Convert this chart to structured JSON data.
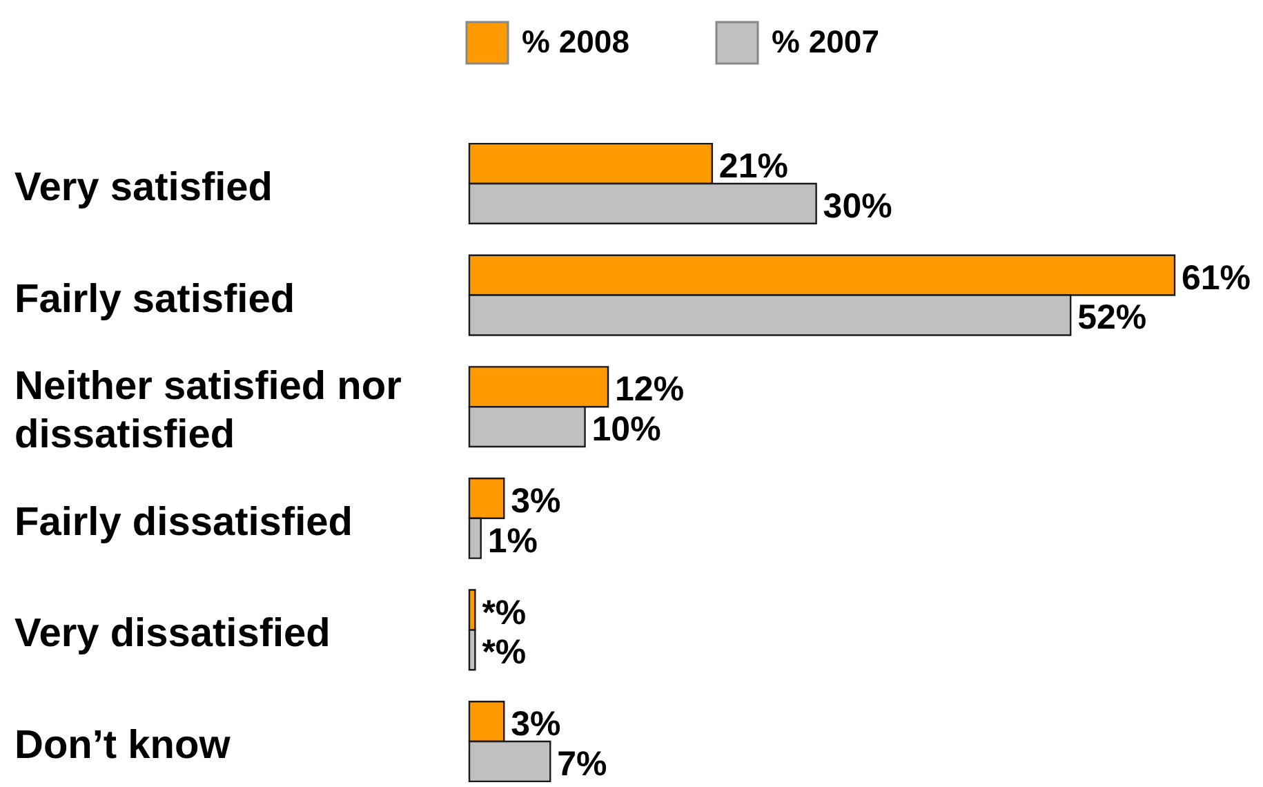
{
  "chart_data": {
    "type": "bar",
    "orientation": "horizontal",
    "legend": "top",
    "grid": false,
    "tick_labels": "y",
    "categories": [
      "Very satisfied",
      "Fairly satisfied",
      "Neither satisfied nor dissatisfied",
      "Fairly dissatisfied",
      "Very dissatisfied",
      "Don’t know"
    ],
    "series": [
      {
        "name": "% 2008",
        "color": "#ff9900",
        "values": [
          21,
          61,
          12,
          3,
          0.5,
          3
        ],
        "value_labels": [
          "21%",
          "61%",
          "12%",
          "3%",
          "*%",
          "3%"
        ]
      },
      {
        "name": "% 2007",
        "color": "#c0c0c0",
        "values": [
          30,
          52,
          10,
          1,
          0.5,
          7
        ],
        "value_labels": [
          "30%",
          "52%",
          "10%",
          "1%",
          "*%",
          "7%"
        ]
      }
    ]
  }
}
